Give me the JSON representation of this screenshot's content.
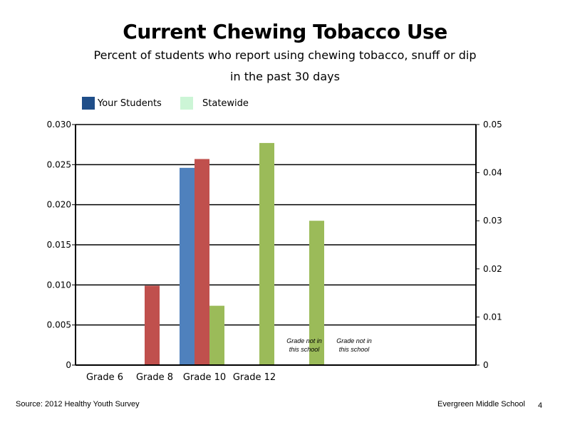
{
  "chart_data": {
    "type": "bar",
    "title": "Current Chewing Tobacco Use",
    "subtitle_line1": "Percent of students who report using chewing tobacco, snuff or dip",
    "subtitle_line2": "in the past 30 days",
    "categories": [
      "Grade 6",
      "Grade 8",
      "Grade 10",
      "Grade 12",
      "",
      ""
    ],
    "legend": [
      {
        "name": "Your Students",
        "color": "#1f4e89"
      },
      {
        "name": "Statewide",
        "color": "#ccf5d6"
      }
    ],
    "bars": [
      {
        "category": 0,
        "slot": "red",
        "value": 0.0099,
        "color": "#c0504d"
      },
      {
        "category": 1,
        "slot": "blue",
        "value": 0.0246,
        "color": "#4f81bd"
      },
      {
        "category": 1,
        "slot": "red",
        "value": 0.0257,
        "color": "#c0504d"
      },
      {
        "category": 1,
        "slot": "green",
        "value": 0.0074,
        "color": "#9bbb59"
      },
      {
        "category": 2,
        "slot": "green",
        "value": 0.0277,
        "color": "#9bbb59"
      },
      {
        "category": 3,
        "slot": "green",
        "value": 0.018,
        "color": "#9bbb59"
      }
    ],
    "y_left": {
      "min": 0,
      "max": 0.03,
      "ticks": [
        "0",
        "0.005",
        "0.010",
        "0.015",
        "0.020",
        "0.025",
        "0.030"
      ]
    },
    "y_right": {
      "min": 0,
      "max": 0.05,
      "ticks": [
        "0",
        "0.01",
        "0.02",
        "0.03",
        "0.04",
        "0.05"
      ]
    },
    "grid": true,
    "annotations": [
      {
        "category": 4,
        "line1": "Grade not in",
        "line2": "this school"
      },
      {
        "category": 5,
        "line1": "Grade not in",
        "line2": "this school"
      }
    ]
  },
  "footer": {
    "source": "Source: 2012 Healthy Youth Survey",
    "school": "Evergreen Middle School",
    "page_number": "4"
  }
}
